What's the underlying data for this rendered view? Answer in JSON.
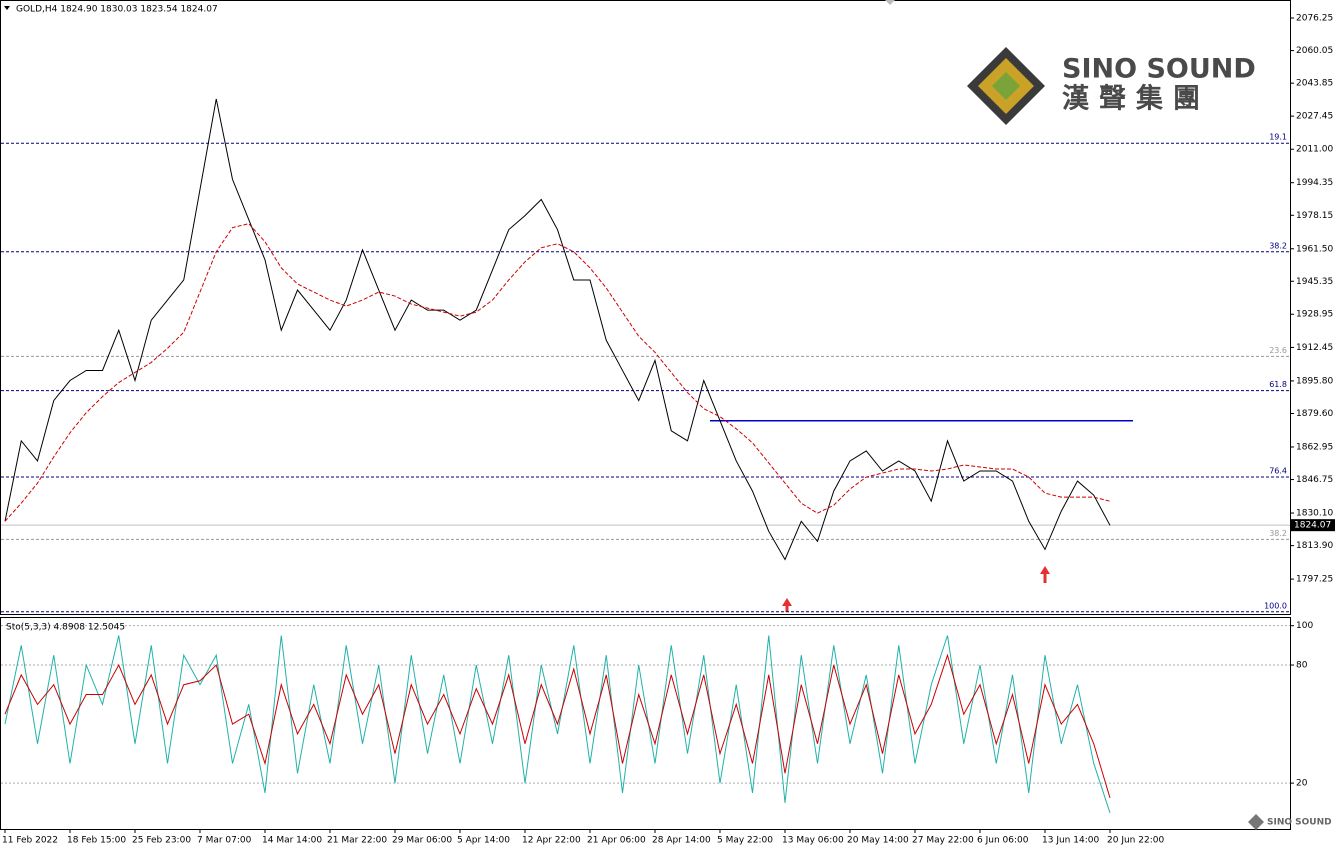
{
  "title": "GOLD,H4  1824.90 1830.03 1823.54 1824.07",
  "logo": {
    "name": "SINO SOUND",
    "subtitle": "漢聲集團",
    "watermark": "SINO SOUND"
  },
  "chart_data": [
    {
      "type": "line",
      "categories": [
        "11 Feb 2022",
        null,
        null,
        null,
        "18 Feb 15:00",
        null,
        null,
        null,
        "25 Feb 23:00",
        null,
        null,
        null,
        "7 Mar 07:00",
        null,
        null,
        null,
        "14 Mar 14:00",
        null,
        null,
        null,
        "21 Mar 22:00",
        null,
        null,
        null,
        "29 Mar 06:00",
        null,
        null,
        null,
        "5 Apr 14:00",
        null,
        null,
        null,
        "12 Apr 22:00",
        null,
        null,
        null,
        "21 Apr 06:00",
        null,
        null,
        null,
        "28 Apr 14:00",
        null,
        null,
        null,
        "5 May 22:00",
        null,
        null,
        null,
        "13 May 06:00",
        null,
        null,
        null,
        "20 May 14:00",
        null,
        null,
        null,
        "27 May 22:00",
        null,
        null,
        null,
        "6 Jun 06:00",
        null,
        null,
        null,
        "13 Jun 14:00",
        null,
        null,
        null,
        "20 Jun 22:00",
        null,
        null,
        null
      ],
      "series": [
        {
          "name": "GOLD,H4",
          "color": "#000000",
          "values": [
            1826,
            1866,
            1856,
            1886,
            1896,
            1901,
            1901,
            1921,
            1896,
            1926,
            1936,
            1946,
            1991,
            2036,
            1996,
            1976,
            1956,
            1921,
            1941,
            1931,
            1921,
            1936,
            1961,
            1941,
            1921,
            1936,
            1931,
            1931,
            1926,
            1931,
            1951,
            1971,
            1978,
            1986,
            1971,
            1946,
            1946,
            1916,
            1901,
            1886,
            1906,
            1871,
            1866,
            1896,
            1876,
            1856,
            1841,
            1821,
            1807,
            1826,
            1816,
            1841,
            1856,
            1861,
            1851,
            1856,
            1851,
            1836,
            1866,
            1846,
            1851,
            1851,
            1846,
            1826,
            1812,
            1831,
            1846,
            1839,
            1824,
            null,
            null,
            null
          ]
        },
        {
          "name": "MA",
          "color": "#cc0000",
          "values": [
            1826,
            1835,
            1845,
            1858,
            1870,
            1880,
            1888,
            1895,
            1900,
            1905,
            1912,
            1920,
            1940,
            1960,
            1972,
            1974,
            1965,
            1952,
            1944,
            1940,
            1936,
            1933,
            1936,
            1940,
            1938,
            1934,
            1932,
            1930,
            1928,
            1930,
            1936,
            1946,
            1955,
            1962,
            1964,
            1960,
            1952,
            1942,
            1930,
            1918,
            1910,
            1900,
            1890,
            1882,
            1878,
            1872,
            1865,
            1855,
            1845,
            1835,
            1830,
            1834,
            1842,
            1848,
            1850,
            1852,
            1852,
            1851,
            1852,
            1854,
            1853,
            1852,
            1852,
            1848,
            1840,
            1838,
            1838,
            1838,
            1836,
            null,
            null,
            null
          ]
        }
      ],
      "ylim": [
        1779.9,
        2085.2
      ],
      "yticks": [
        2076.25,
        2060.05,
        2043.85,
        2027.45,
        {
          "value": 2011,
          "label": "2011.00"
        },
        1994.35,
        1978.15,
        {
          "value": 1961.5,
          "label": "1961.50"
        },
        1945.35,
        1928.95,
        1912.45,
        {
          "value": 1895.8,
          "label": "1895.80"
        },
        {
          "value": 1879.6,
          "label": "1879.60"
        },
        1862.95,
        1846.75,
        {
          "value": 1830.1,
          "label": "1830.10"
        },
        {
          "value": 1813.9,
          "label": "1813.90"
        },
        1797.25
      ],
      "last_price": {
        "value": 1824.07,
        "label": "1824.07"
      },
      "levels": [
        {
          "value": 2014,
          "label": "19.1",
          "color": "#000080"
        },
        {
          "value": 1960,
          "label": "38.2",
          "color": "#000080"
        },
        {
          "value": 1908,
          "label": "23.6",
          "color": "#999999"
        },
        {
          "value": 1891,
          "label": "61.8",
          "color": "#000080"
        },
        {
          "value": 1848,
          "label": "76.4",
          "color": "#000080"
        },
        {
          "value": 1817,
          "label": "38.2",
          "color": "#999999"
        },
        {
          "value": 1781,
          "label": "100.0",
          "color": "#000080"
        }
      ],
      "resistance": {
        "value": 1876,
        "color": "#0000cc"
      }
    },
    {
      "type": "line",
      "title": "Sto(5,3,3) 4.8908 12.5045",
      "series": [
        {
          "name": "Main",
          "color": "#20b2aa",
          "values": [
            50,
            90,
            40,
            85,
            30,
            80,
            60,
            95,
            40,
            90,
            30,
            85,
            70,
            85,
            30,
            60,
            15,
            95,
            25,
            70,
            30,
            90,
            40,
            80,
            20,
            85,
            35,
            75,
            30,
            80,
            40,
            85,
            20,
            80,
            45,
            90,
            30,
            85,
            15,
            80,
            30,
            90,
            35,
            85,
            20,
            70,
            15,
            95,
            10,
            85,
            30,
            90,
            40,
            75,
            25,
            90,
            30,
            70,
            95,
            40,
            80,
            30,
            75,
            15,
            85,
            40,
            70,
            30,
            4.8908,
            null,
            null,
            null
          ]
        },
        {
          "name": "Signal",
          "color": "#cc0000",
          "values": [
            55,
            75,
            60,
            70,
            50,
            65,
            65,
            80,
            60,
            75,
            50,
            70,
            72,
            80,
            50,
            55,
            30,
            70,
            45,
            60,
            40,
            75,
            55,
            70,
            35,
            70,
            50,
            65,
            45,
            68,
            50,
            75,
            40,
            70,
            50,
            78,
            45,
            75,
            30,
            65,
            40,
            75,
            45,
            75,
            35,
            60,
            30,
            75,
            25,
            70,
            40,
            80,
            50,
            70,
            35,
            75,
            45,
            60,
            85,
            55,
            70,
            40,
            65,
            30,
            70,
            50,
            60,
            40,
            12.5045,
            null,
            null,
            null
          ]
        }
      ],
      "ylim": [
        -2.8,
        103.9
      ],
      "yticks": [
        100,
        80,
        20
      ]
    }
  ]
}
